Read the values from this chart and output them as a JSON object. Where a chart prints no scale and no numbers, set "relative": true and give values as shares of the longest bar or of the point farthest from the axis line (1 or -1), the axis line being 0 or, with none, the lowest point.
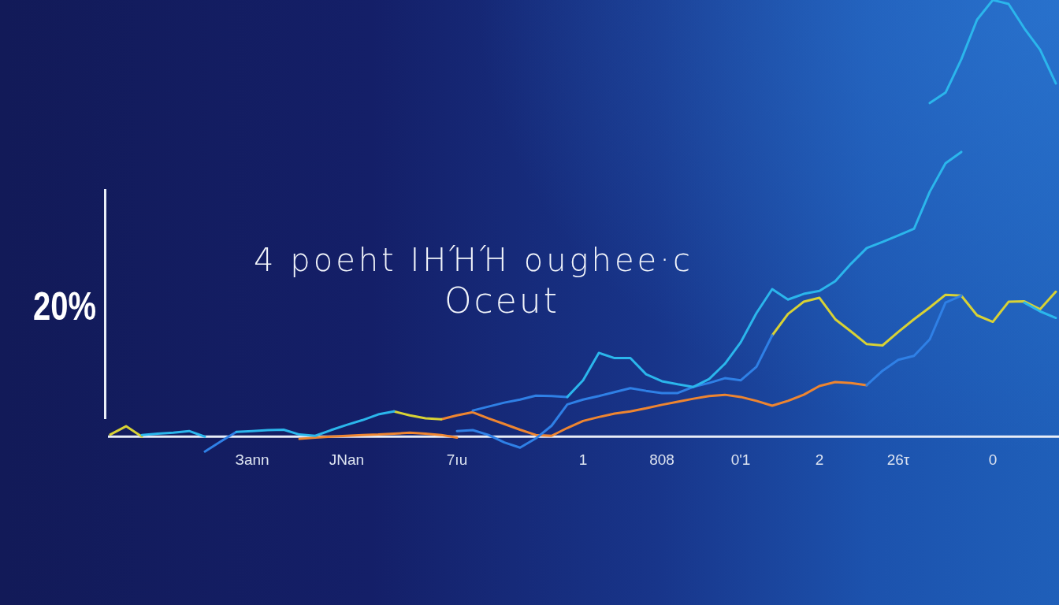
{
  "chart_data": {
    "type": "line",
    "title": "4 poeht ΙΗΉΉ oughee·c",
    "subtitle": "Oceut",
    "relative": true,
    "marker": "none",
    "line_style": "solid",
    "annotations": [
      "20%"
    ],
    "categories": [
      null,
      null,
      null,
      null,
      null,
      null,
      null,
      null,
      null,
      "Зann",
      null,
      null,
      null,
      null,
      null,
      "JNan",
      null,
      null,
      null,
      null,
      null,
      null,
      "7ıu",
      null,
      null,
      null,
      null,
      null,
      null,
      null,
      "1",
      null,
      null,
      null,
      null,
      "808",
      null,
      null,
      null,
      null,
      "0'1",
      null,
      null,
      null,
      null,
      "2",
      null,
      null,
      null,
      null,
      "26τ",
      null,
      null,
      null,
      null,
      null,
      "0",
      null,
      null,
      null,
      null
    ],
    "series": [
      {
        "color": "#2bb6ec",
        "values": [
          null,
          null,
          0.004,
          0.007,
          0.009,
          0.013,
          0,
          null,
          0.011,
          0.013,
          0.015,
          0.016,
          0.005,
          0.002,
          0.015,
          0.027,
          0.038,
          0.051,
          0.058,
          null,
          null,
          null,
          null,
          null,
          null,
          null,
          null,
          null,
          null,
          0.091,
          0.129,
          0.192,
          0.18,
          0.18,
          0.143,
          0.127,
          0.12,
          0.114,
          0.132,
          0.167,
          0.216,
          0.283,
          0.338,
          0.314,
          0.327,
          0.334,
          0.356,
          0.396,
          0.432,
          0.446,
          0.461,
          0.476,
          0.561,
          0.626,
          0.652,
          null,
          null,
          null,
          0.307,
          0.287,
          0.272
        ]
      },
      {
        "color": "#2bb6ec",
        "values": [
          null,
          null,
          null,
          null,
          null,
          null,
          null,
          null,
          null,
          null,
          null,
          null,
          null,
          null,
          null,
          null,
          null,
          null,
          null,
          null,
          null,
          null,
          null,
          null,
          null,
          null,
          null,
          null,
          null,
          null,
          null,
          null,
          null,
          null,
          null,
          null,
          null,
          null,
          null,
          null,
          null,
          null,
          null,
          null,
          null,
          null,
          null,
          null,
          null,
          null,
          null,
          null,
          0.764,
          0.788,
          0.864,
          0.955,
          1,
          0.991,
          0.935,
          0.886,
          0.809
        ]
      },
      {
        "color": "#2f80e6",
        "values": [
          null,
          null,
          null,
          null,
          null,
          null,
          -0.034,
          -0.011,
          0.011,
          null,
          null,
          null,
          null,
          null,
          null,
          null,
          null,
          null,
          null,
          null,
          null,
          null,
          0.013,
          0.015,
          0.004,
          -0.013,
          -0.025,
          -0.004,
          0.025,
          0.074,
          0.085,
          0.093,
          0.102,
          0.111,
          0.105,
          0.1,
          0.1,
          0.114,
          0.123,
          0.134,
          0.129,
          0.16,
          0.232,
          null,
          null,
          null,
          null,
          null,
          0.118,
          0.151,
          0.176,
          0.185,
          0.223,
          0.307,
          0.323,
          null,
          null,
          null,
          null,
          null,
          null
        ]
      },
      {
        "color": "#2f80e6",
        "values": [
          null,
          null,
          null,
          null,
          null,
          null,
          null,
          null,
          null,
          null,
          null,
          null,
          null,
          null,
          null,
          null,
          null,
          null,
          null,
          null,
          null,
          null,
          null,
          0.06,
          0.069,
          0.078,
          0.085,
          0.094,
          0.093,
          0.091,
          null,
          null,
          null,
          null,
          null,
          null,
          null,
          null,
          null,
          null,
          null,
          null,
          null,
          null,
          null,
          null,
          null,
          null,
          null,
          null,
          null,
          null,
          null,
          null,
          null,
          null,
          null,
          null,
          null,
          null,
          null
        ]
      },
      {
        "color": "#d8d235",
        "values": [
          0.005,
          0.024,
          0,
          null,
          null,
          null,
          null,
          null,
          null,
          null,
          null,
          null,
          null,
          null,
          null,
          null,
          null,
          null,
          0.058,
          0.049,
          0.042,
          0.04,
          null,
          null,
          null,
          null,
          null,
          null,
          null,
          null,
          null,
          null,
          null,
          null,
          null,
          null,
          null,
          null,
          null,
          null,
          null,
          null,
          0.232,
          0.281,
          0.309,
          0.318,
          0.269,
          0.241,
          0.212,
          0.209,
          0.24,
          0.269,
          0.296,
          0.325,
          0.323,
          0.278,
          0.263,
          0.309,
          0.31,
          0.292,
          0.332
        ]
      },
      {
        "color": "#ee8530",
        "values": [
          null,
          null,
          null,
          null,
          null,
          null,
          null,
          null,
          null,
          null,
          null,
          null,
          null,
          null,
          null,
          null,
          null,
          null,
          null,
          null,
          null,
          0.04,
          0.049,
          0.056,
          0.042,
          0.029,
          0.016,
          0.004,
          0.002,
          0.02,
          0.036,
          0.045,
          0.053,
          0.058,
          0.065,
          0.073,
          0.08,
          0.087,
          0.093,
          0.096,
          0.091,
          0.082,
          0.071,
          0.082,
          0.096,
          0.116,
          0.125,
          0.123,
          0.118,
          null,
          null,
          null,
          null,
          null,
          null,
          null,
          null,
          null,
          null,
          null,
          null
        ]
      },
      {
        "color": "#ee8530",
        "values": [
          null,
          null,
          null,
          null,
          null,
          null,
          null,
          null,
          null,
          null,
          null,
          null,
          -0.005,
          -0.002,
          0,
          0.002,
          0.004,
          0.005,
          0.007,
          0.009,
          0.007,
          0.004,
          -0.002,
          null,
          null,
          null,
          null,
          null,
          null,
          null,
          null,
          null,
          null,
          null,
          null,
          null,
          null,
          null,
          null,
          null,
          null,
          null,
          null,
          null,
          null,
          null,
          null,
          null,
          null,
          null,
          null,
          null,
          null,
          null,
          null,
          null,
          null,
          null,
          null,
          null,
          null
        ]
      }
    ]
  }
}
